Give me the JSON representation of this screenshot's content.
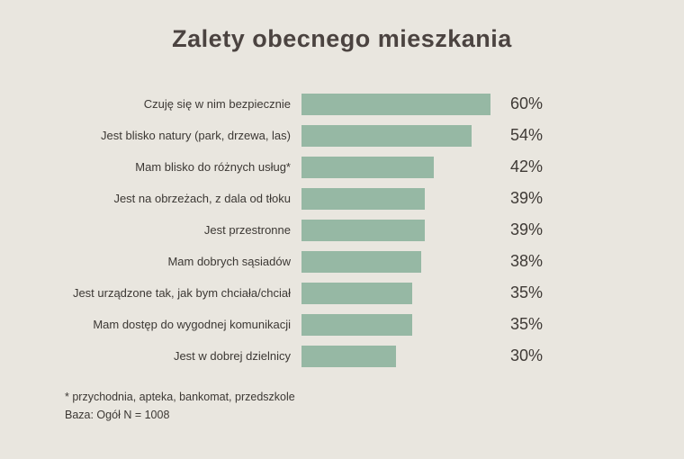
{
  "title": "Zalety obecnego mieszkania",
  "footnotes": {
    "line1": "* przychodnia, apteka, bankomat, przedszkole",
    "line2": "Baza: Ogół N = 1008"
  },
  "colors": {
    "background": "#e9e6df",
    "bar": "#96b8a4",
    "title_text": "#4b4340",
    "body_text": "#3c3834"
  },
  "chart_data": {
    "type": "bar",
    "orientation": "horizontal",
    "title": "Zalety obecnego mieszkania",
    "xlabel": "",
    "ylabel": "",
    "value_suffix": "%",
    "axis_max": 60,
    "grid": false,
    "legend": false,
    "categories": [
      "Czuję się w nim bezpiecznie",
      "Jest blisko natury (park, drzewa, las)",
      "Mam blisko do różnych usług*",
      "Jest na obrzeżach, z dala od tłoku",
      "Jest przestronne",
      "Mam dobrych sąsiadów",
      "Jest urządzone tak, jak bym chciała/chciał",
      "Mam dostęp do wygodnej komunikacji",
      "Jest w dobrej dzielnicy"
    ],
    "values": [
      60,
      54,
      42,
      39,
      39,
      38,
      35,
      35,
      30
    ],
    "rows": [
      {
        "label": "Czuję się w nim bezpiecznie",
        "value": 60
      },
      {
        "label": "Jest blisko natury (park, drzewa, las)",
        "value": 54
      },
      {
        "label": "Mam blisko do różnych usług*",
        "value": 42
      },
      {
        "label": "Jest na obrzeżach, z dala od tłoku",
        "value": 39
      },
      {
        "label": "Jest przestronne",
        "value": 39
      },
      {
        "label": "Mam dobrych sąsiadów",
        "value": 38
      },
      {
        "label": "Jest urządzone tak, jak bym chciała/chciał",
        "value": 35
      },
      {
        "label": "Mam dostęp do wygodnej komunikacji",
        "value": 35
      },
      {
        "label": "Jest w dobrej dzielnicy",
        "value": 30
      }
    ]
  }
}
